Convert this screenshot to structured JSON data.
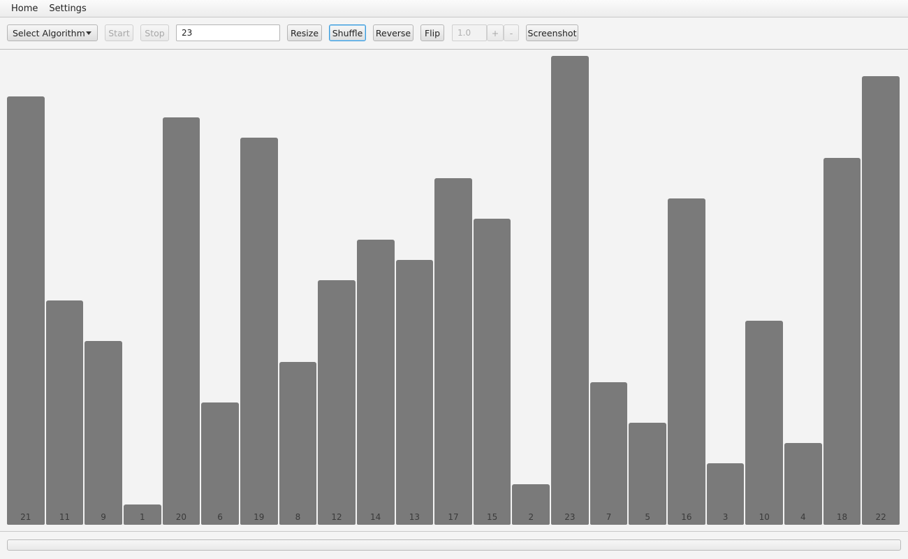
{
  "menubar": {
    "items": [
      "Home",
      "Settings"
    ]
  },
  "toolbar": {
    "algorithm_select": "Select Algorithm",
    "start_label": "Start",
    "stop_label": "Stop",
    "size_value": "23",
    "resize_label": "Resize",
    "shuffle_label": "Shuffle",
    "reverse_label": "Reverse",
    "flip_label": "Flip",
    "speed_value": "1.0",
    "plus_label": "+",
    "minus_label": "-",
    "screenshot_label": "Screenshot"
  },
  "progress": {
    "value": 0
  },
  "colors": {
    "bar": "#7a7a7a",
    "focus": "#3a9ad9"
  },
  "chart_data": {
    "type": "bar",
    "categories": [
      "21",
      "11",
      "9",
      "1",
      "20",
      "6",
      "19",
      "8",
      "12",
      "14",
      "13",
      "17",
      "15",
      "2",
      "23",
      "7",
      "5",
      "16",
      "3",
      "10",
      "4",
      "18",
      "22"
    ],
    "values": [
      21,
      11,
      9,
      1,
      20,
      6,
      19,
      8,
      12,
      14,
      13,
      17,
      15,
      2,
      23,
      7,
      5,
      16,
      3,
      10,
      4,
      18,
      22
    ],
    "ylim": [
      0,
      23
    ],
    "grid": false,
    "title": "",
    "xlabel": "",
    "ylabel": ""
  }
}
